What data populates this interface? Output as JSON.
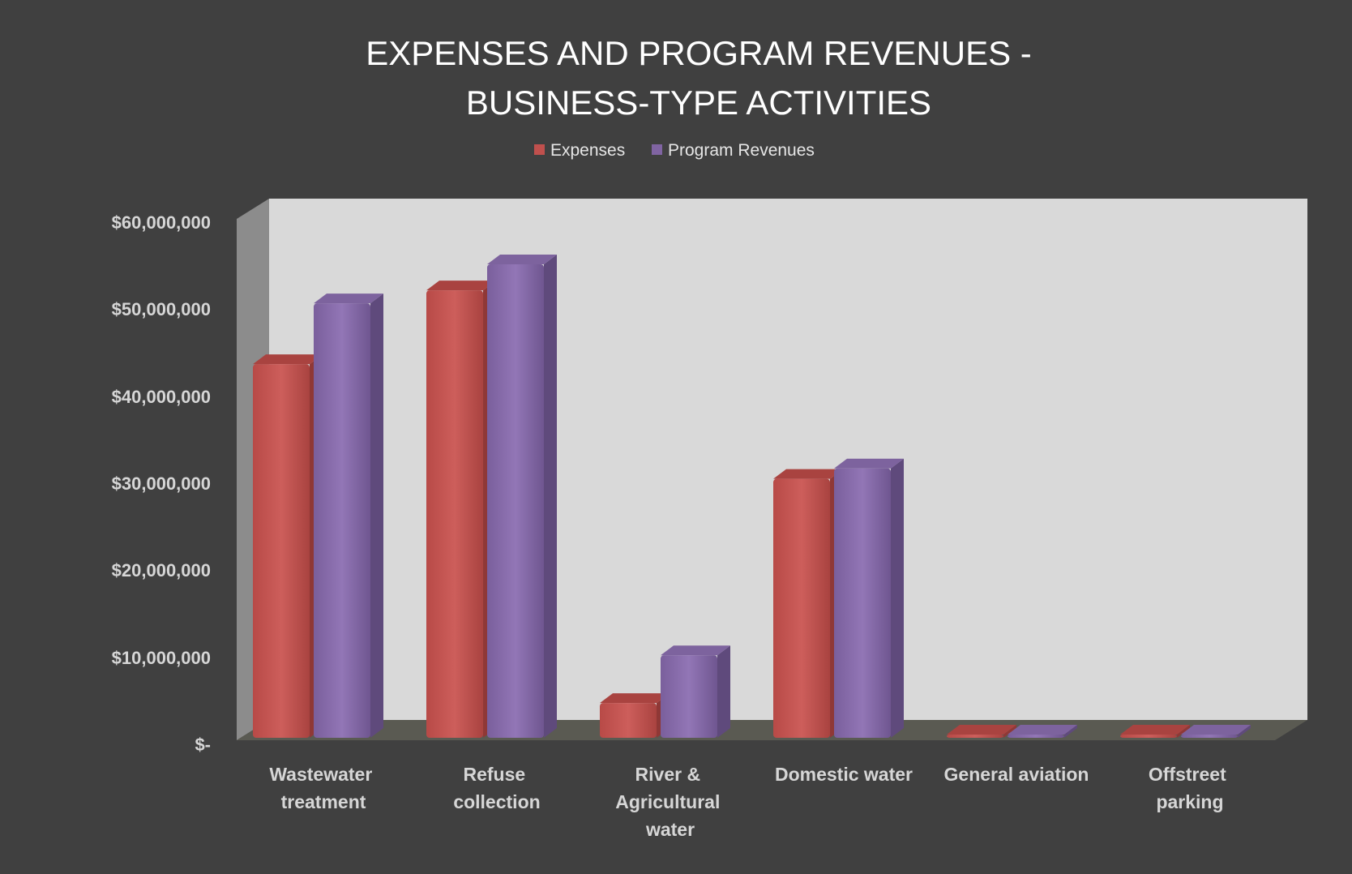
{
  "chart_data": {
    "type": "bar",
    "title_lines": [
      "EXPENSES AND PROGRAM REVENUES -",
      "BUSINESS-TYPE ACTIVITIES"
    ],
    "categories": [
      [
        "Wastewater",
        "treatment"
      ],
      [
        "Refuse",
        "collection"
      ],
      [
        "River &",
        "Agricultural",
        "water"
      ],
      [
        "Domestic water"
      ],
      [
        "General aviation"
      ],
      [
        "Offstreet",
        "parking"
      ]
    ],
    "series": [
      {
        "name": "Expenses",
        "color": "#c0504d",
        "values": [
          43000000,
          51500000,
          4000000,
          29800000,
          200000,
          200000
        ]
      },
      {
        "name": "Program Revenues",
        "color": "#8064a2",
        "values": [
          50000000,
          54500000,
          9500000,
          31000000,
          150000,
          150000
        ]
      }
    ],
    "yticks": [
      "$-",
      "$10,000,000",
      "$20,000,000",
      "$30,000,000",
      "$40,000,000",
      "$50,000,000",
      "$60,000,000"
    ],
    "ylim": [
      0,
      60000000
    ],
    "legend_position": "top-center",
    "grid": false
  }
}
